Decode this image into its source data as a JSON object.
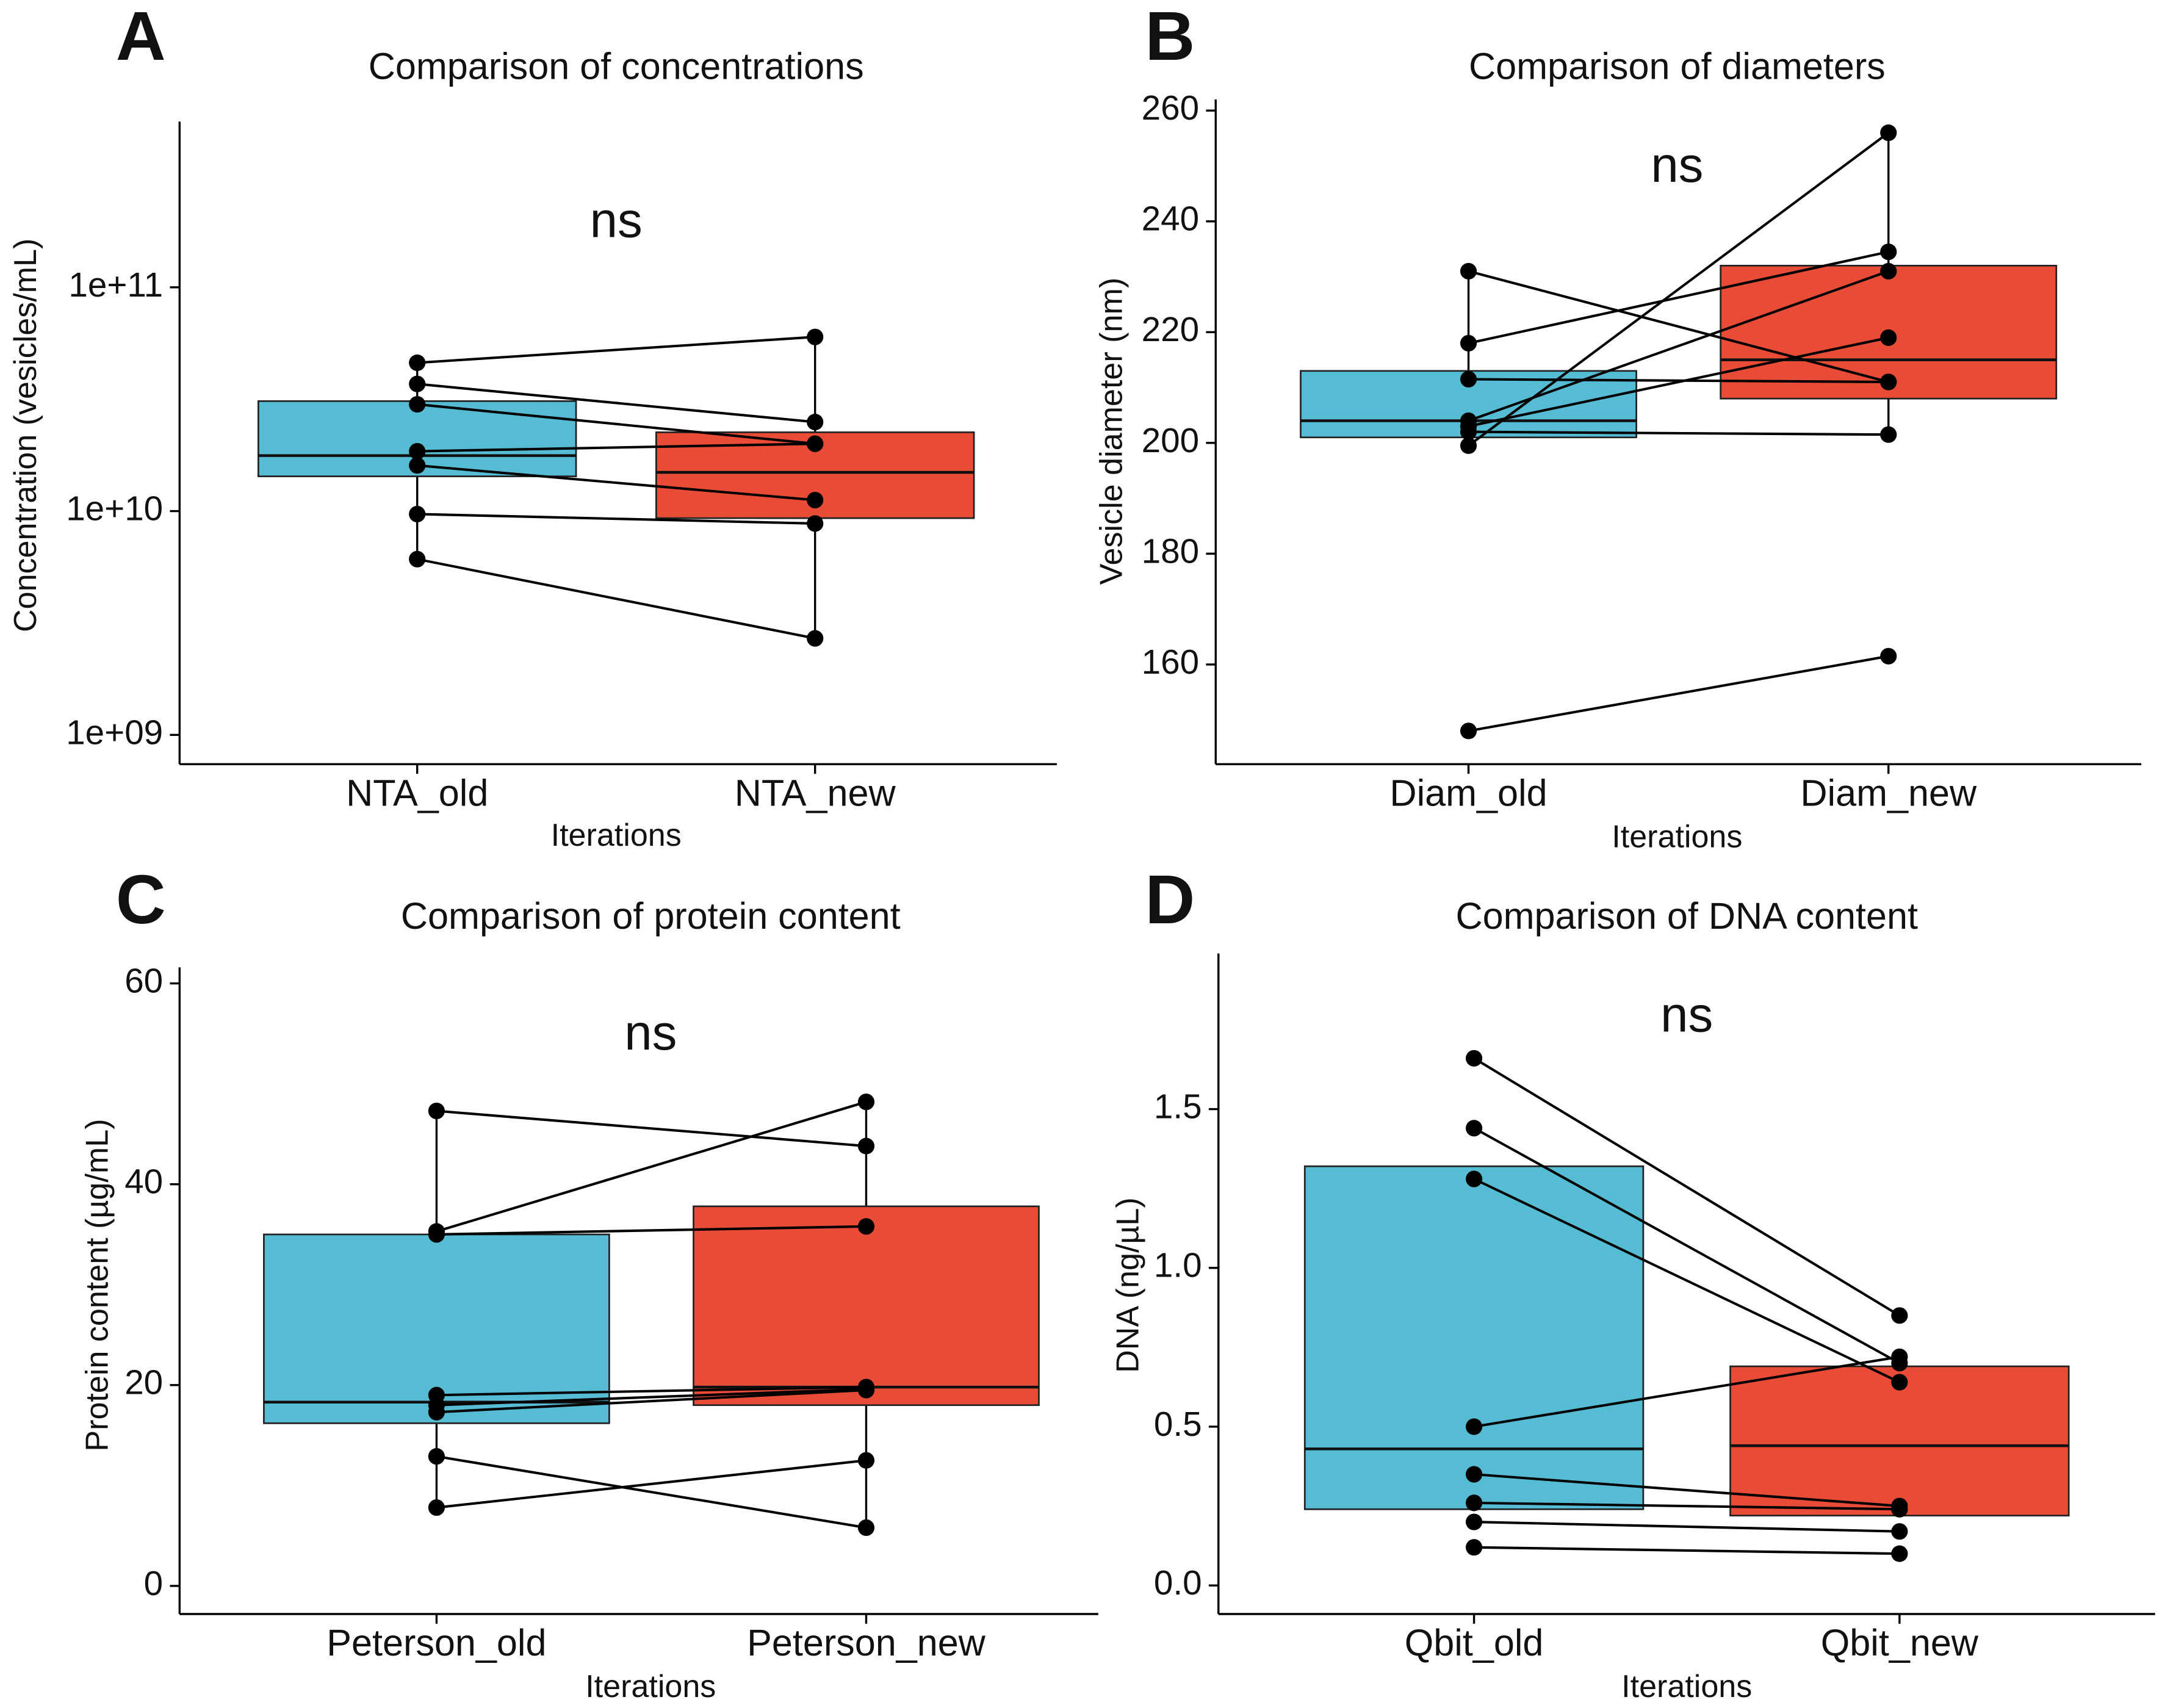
{
  "chart_data": [
    {
      "type": "paired_box",
      "panel": "A",
      "title": "Comparison of concentrations",
      "annotation": "ns",
      "x_label": "Iterations",
      "y_label": "Concentration (vesicles/mL)",
      "log_scale": true,
      "categories": [
        "NTA_old",
        "NTA_new"
      ],
      "colors": [
        "#56bcd4",
        "#e84b36"
      ],
      "boxes": [
        {
          "q1": 14300000000,
          "median": 17700000000,
          "q3": 31000000000,
          "whisker": [
            6100000000,
            46000000000
          ]
        },
        {
          "q1": 9300000000,
          "median": 14900000000,
          "q3": 22500000000,
          "whisker": [
            2700000000,
            60000000000
          ]
        }
      ],
      "pairs": [
        [
          46000000000,
          60000000000
        ],
        [
          37000000000,
          25000000000
        ],
        [
          30000000000,
          20000000000
        ],
        [
          18500000000,
          20000000000
        ],
        [
          16000000000,
          11200000000
        ],
        [
          9700000000,
          8800000000
        ],
        [
          6100000000,
          2700000000
        ]
      ],
      "ylim": [
        740000000,
        550000000000
      ],
      "yticks": [
        {
          "value": 1000000000,
          "label": "1e+09"
        },
        {
          "value": 10000000000,
          "label": "1e+10"
        },
        {
          "value": 100000000000,
          "label": "1e+11"
        }
      ]
    },
    {
      "type": "paired_box",
      "panel": "B",
      "title": "Comparison of diameters",
      "annotation": "ns",
      "x_label": "Iterations",
      "y_label": "Vesicle diameter (nm)",
      "log_scale": false,
      "categories": [
        "Diam_old",
        "Diam_new"
      ],
      "colors": [
        "#56bcd4",
        "#e84b36"
      ],
      "boxes": [
        {
          "q1": 201,
          "median": 204,
          "q3": 213,
          "whisker": [
            199.5,
            231
          ]
        },
        {
          "q1": 208,
          "median": 215,
          "q3": 232,
          "whisker": [
            201.5,
            256
          ]
        }
      ],
      "pairs": [
        [
          231,
          211
        ],
        [
          218,
          234.5
        ],
        [
          211.5,
          211
        ],
        [
          204,
          231
        ],
        [
          203,
          219
        ],
        [
          199.5,
          256
        ],
        [
          202,
          201.5
        ],
        [
          148,
          161.5
        ]
      ],
      "ylim": [
        142,
        262
      ],
      "yticks": [
        160,
        180,
        200,
        220,
        240,
        260
      ]
    },
    {
      "type": "paired_box",
      "panel": "C",
      "title": "Comparison of protein content",
      "annotation": "ns",
      "x_label": "Iterations",
      "y_label": "Protein content (µg/mL)",
      "log_scale": false,
      "categories": [
        "Peterson_old",
        "Peterson_new"
      ],
      "colors": [
        "#56bcd4",
        "#e84b36"
      ],
      "boxes": [
        {
          "q1": 16.2,
          "median": 18.3,
          "q3": 35,
          "whisker": [
            7.8,
            47.3
          ]
        },
        {
          "q1": 18,
          "median": 19.8,
          "q3": 37.8,
          "whisker": [
            5.8,
            48.2
          ]
        }
      ],
      "pairs": [
        [
          47.3,
          43.8
        ],
        [
          35.3,
          48.2
        ],
        [
          35,
          35.8
        ],
        [
          19,
          19.8
        ],
        [
          18,
          19.6
        ],
        [
          17.3,
          19.5
        ],
        [
          12.9,
          5.8
        ],
        [
          7.8,
          12.5
        ]
      ],
      "ylim": [
        -2.8,
        61.6
      ],
      "yticks": [
        0,
        20,
        40,
        60
      ]
    },
    {
      "type": "paired_box",
      "panel": "D",
      "title": "Comparison of DNA content",
      "annotation": "ns",
      "x_label": "Iterations",
      "y_label": "DNA (ng/µL)",
      "log_scale": false,
      "categories": [
        "Qbit_old",
        "Qbit_new"
      ],
      "colors": [
        "#56bcd4",
        "#e84b36"
      ],
      "boxes": [
        {
          "q1": 0.24,
          "median": 0.43,
          "q3": 1.32
        },
        {
          "q1": 0.22,
          "median": 0.44,
          "q3": 0.69
        }
      ],
      "pairs": [
        [
          1.66,
          0.85
        ],
        [
          1.44,
          0.7
        ],
        [
          1.28,
          0.64
        ],
        [
          0.5,
          0.72
        ],
        [
          0.35,
          0.25
        ],
        [
          0.26,
          0.24
        ],
        [
          0.2,
          0.17
        ],
        [
          0.12,
          0.1
        ]
      ],
      "ylim": [
        -0.09,
        1.99
      ],
      "yticks": [
        {
          "value": 0,
          "label": "0.0"
        },
        0.5,
        {
          "value": 1,
          "label": "1.0"
        },
        1.5
      ]
    }
  ]
}
